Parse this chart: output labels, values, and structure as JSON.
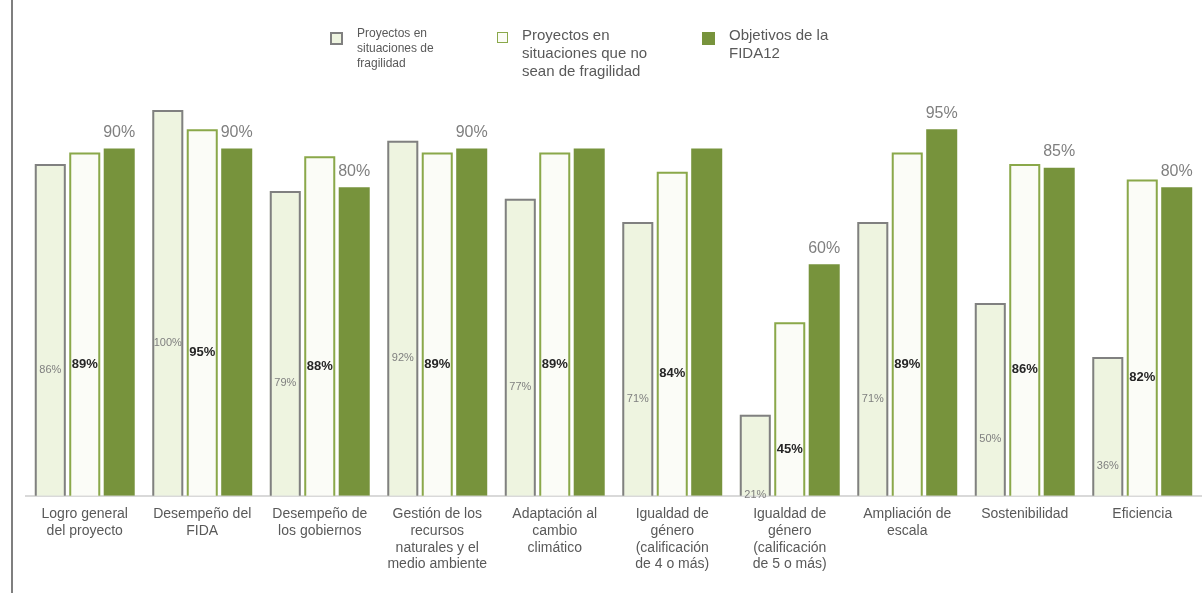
{
  "chart_data": {
    "type": "bar",
    "categories": [
      "Logro general del proyecto",
      "Desempeño del FIDA",
      "Desempeño de los gobiernos",
      "Gestión de los recursos naturales y el medio ambiente",
      "Adaptación al cambio climático",
      "Igualdad de género (calificación de 4 o más)",
      "Igualdad de género (calificación de 5 o más)",
      "Ampliación de escala",
      "Sostenibilidad",
      "Eficiencia"
    ],
    "series": [
      {
        "name": "Proyectos en situaciones de fragilidad",
        "color": "#eef4e0",
        "values": [
          86,
          100,
          79,
          92,
          77,
          71,
          21,
          71,
          50,
          36
        ],
        "value_labels": [
          "86%",
          "100%",
          "79%",
          "92%",
          "77%",
          "71%",
          "21%",
          "71%",
          "50%",
          "36%"
        ]
      },
      {
        "name": "Proyectos en situaciones que no sean de fragilidad",
        "color": "#fbfcf7",
        "values": [
          89,
          95,
          88,
          89,
          89,
          84,
          45,
          89,
          86,
          82
        ],
        "value_labels": [
          "89%",
          "95%",
          "88%",
          "89%",
          "89%",
          "84%",
          "45%",
          "89%",
          "86%",
          "82%"
        ]
      },
      {
        "name": "Objetivos de la FIDA12",
        "color": "#77933c",
        "values": [
          90,
          90,
          80,
          90,
          90,
          90,
          60,
          95,
          85,
          80
        ],
        "value_labels": [
          "90%",
          "90%",
          "80%",
          "90%",
          null,
          null,
          "60%",
          "95%",
          "85%",
          "80%"
        ]
      }
    ],
    "legend": "top",
    "grid": false
  }
}
